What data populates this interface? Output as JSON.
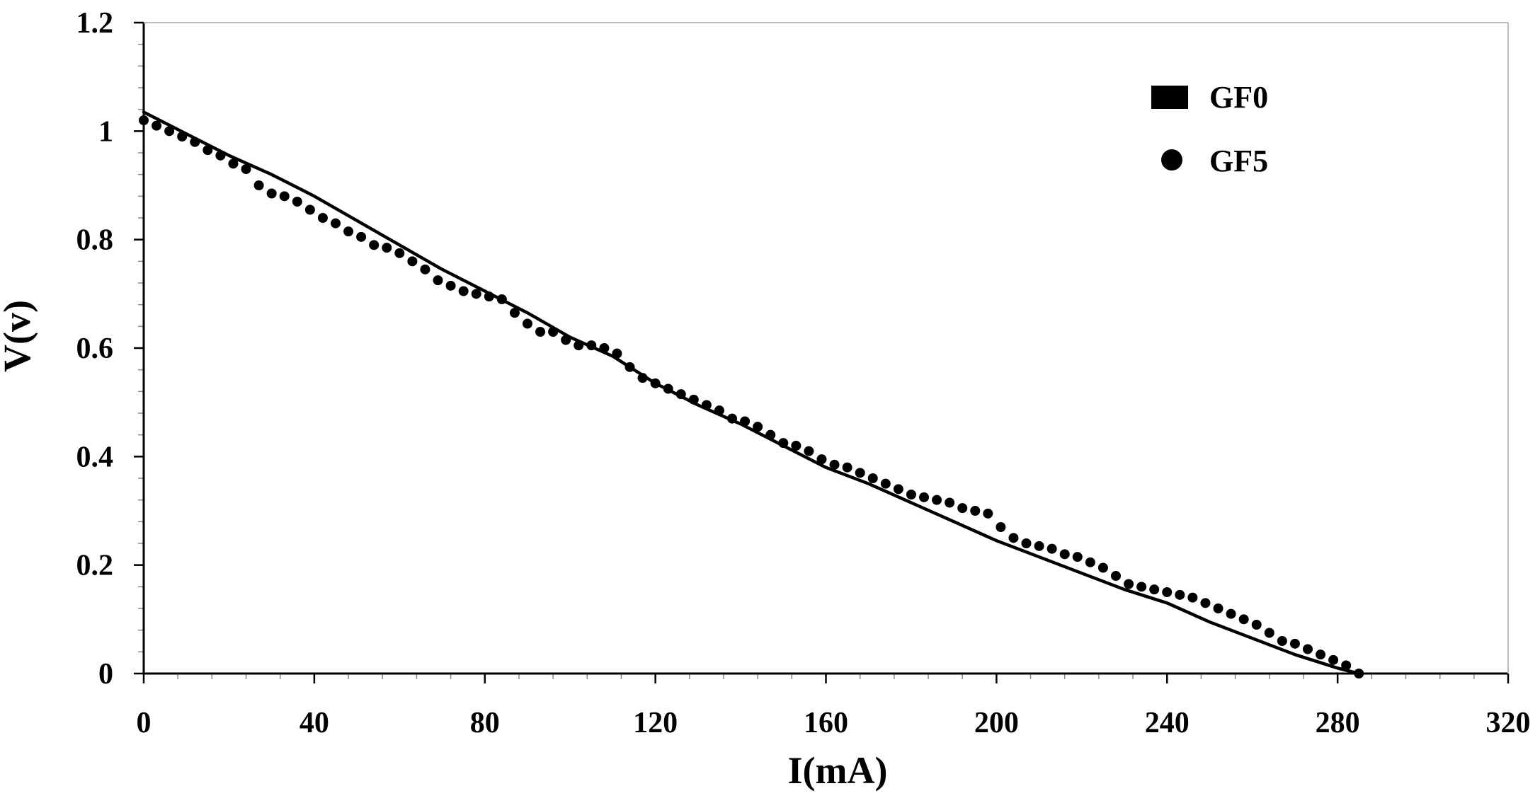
{
  "chart_data": {
    "type": "scatter",
    "xlabel": "I(mA)",
    "ylabel": "V(v)",
    "xlim": [
      0,
      320
    ],
    "ylim": [
      0,
      1.2
    ],
    "x_ticks": [
      0,
      40,
      80,
      120,
      160,
      200,
      240,
      280,
      320
    ],
    "y_ticks": [
      0,
      0.2,
      0.4,
      0.6,
      0.8,
      1,
      1.2
    ],
    "x_tick_labels": [
      "0",
      "40",
      "80",
      "120",
      "160",
      "200",
      "240",
      "280",
      "320"
    ],
    "y_tick_labels": [
      "0",
      "0.2",
      "0.4",
      "0.6",
      "0.8",
      "1",
      "1.2"
    ],
    "legend_position": "top-right",
    "grid": false,
    "series": [
      {
        "name": "GF0",
        "style": "line",
        "color": "#000000",
        "x": [
          0,
          10,
          20,
          30,
          40,
          50,
          60,
          70,
          80,
          90,
          100,
          110,
          120,
          130,
          140,
          150,
          160,
          170,
          180,
          190,
          200,
          210,
          220,
          230,
          240,
          250,
          260,
          270,
          280,
          285
        ],
        "y": [
          1.035,
          0.995,
          0.955,
          0.92,
          0.88,
          0.835,
          0.79,
          0.745,
          0.705,
          0.665,
          0.62,
          0.585,
          0.535,
          0.495,
          0.46,
          0.42,
          0.38,
          0.35,
          0.315,
          0.28,
          0.245,
          0.215,
          0.185,
          0.155,
          0.13,
          0.095,
          0.065,
          0.035,
          0.01,
          0
        ]
      },
      {
        "name": "GF5",
        "style": "scatter",
        "color": "#000000",
        "x": [
          0,
          3,
          6,
          9,
          12,
          15,
          18,
          21,
          24,
          27,
          30,
          33,
          36,
          39,
          42,
          45,
          48,
          51,
          54,
          57,
          60,
          63,
          66,
          69,
          72,
          75,
          78,
          81,
          84,
          87,
          90,
          93,
          96,
          99,
          102,
          105,
          108,
          111,
          114,
          117,
          120,
          123,
          126,
          129,
          132,
          135,
          138,
          141,
          144,
          147,
          150,
          153,
          156,
          159,
          162,
          165,
          168,
          171,
          174,
          177,
          180,
          183,
          186,
          189,
          192,
          195,
          198,
          201,
          204,
          207,
          210,
          213,
          216,
          219,
          222,
          225,
          228,
          231,
          234,
          237,
          240,
          243,
          246,
          249,
          252,
          255,
          258,
          261,
          264,
          267,
          270,
          273,
          276,
          279,
          282,
          285
        ],
        "y": [
          1.02,
          1.01,
          1.0,
          0.99,
          0.98,
          0.965,
          0.955,
          0.94,
          0.93,
          0.9,
          0.885,
          0.88,
          0.87,
          0.855,
          0.84,
          0.83,
          0.815,
          0.805,
          0.79,
          0.785,
          0.775,
          0.76,
          0.745,
          0.725,
          0.715,
          0.705,
          0.7,
          0.695,
          0.69,
          0.665,
          0.645,
          0.63,
          0.63,
          0.615,
          0.605,
          0.605,
          0.6,
          0.59,
          0.565,
          0.545,
          0.535,
          0.525,
          0.515,
          0.505,
          0.495,
          0.485,
          0.47,
          0.465,
          0.455,
          0.44,
          0.425,
          0.42,
          0.41,
          0.395,
          0.385,
          0.38,
          0.37,
          0.36,
          0.35,
          0.34,
          0.33,
          0.325,
          0.32,
          0.315,
          0.305,
          0.3,
          0.295,
          0.27,
          0.25,
          0.24,
          0.235,
          0.23,
          0.22,
          0.215,
          0.205,
          0.195,
          0.18,
          0.165,
          0.16,
          0.155,
          0.15,
          0.145,
          0.14,
          0.13,
          0.12,
          0.11,
          0.1,
          0.09,
          0.075,
          0.06,
          0.055,
          0.045,
          0.035,
          0.025,
          0.015,
          0
        ]
      }
    ]
  }
}
